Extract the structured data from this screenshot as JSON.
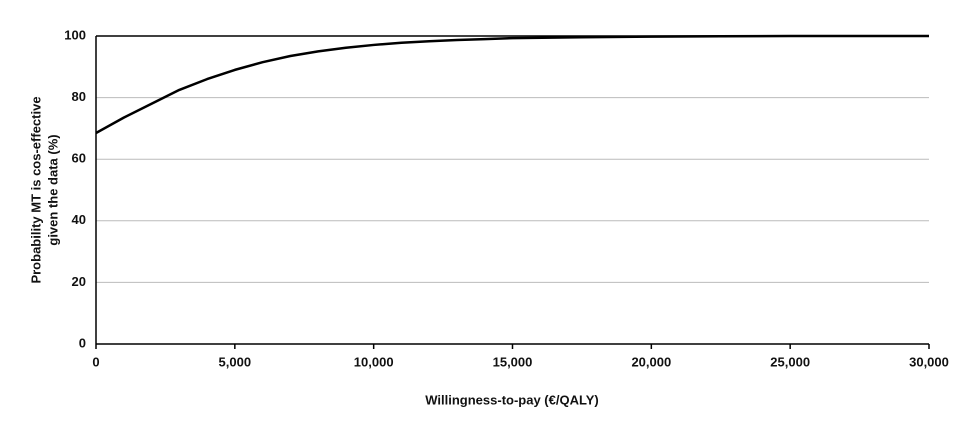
{
  "chart_data": {
    "type": "line",
    "xlabel": "Willingness-to-pay (€/QALY)",
    "ylabel": [
      "Probability MT is cos-effective",
      "given the data (%)"
    ],
    "x": [
      0,
      1000,
      2000,
      3000,
      4000,
      5000,
      6000,
      7000,
      8000,
      9000,
      10000,
      11000,
      12000,
      13000,
      14000,
      15000,
      17500,
      20000,
      22500,
      25000,
      27500,
      30000
    ],
    "series": [
      {
        "color": "#000000",
        "values": [
          68.5,
          73.5,
          78,
          82.5,
          86,
          89,
          91.5,
          93.5,
          95,
          96.2,
          97.1,
          97.8,
          98.3,
          98.7,
          99,
          99.3,
          99.6,
          99.8,
          99.9,
          100,
          100,
          100
        ]
      }
    ],
    "xlim": [
      0,
      30000
    ],
    "xticks": [
      0,
      {
        "value": 5000,
        "label": "5,000"
      },
      {
        "value": 10000,
        "label": "10,000"
      },
      {
        "value": 15000,
        "label": "15,000"
      },
      {
        "value": 20000,
        "label": "20,000"
      },
      {
        "value": 25000,
        "label": "25,000"
      },
      {
        "value": 30000,
        "label": "30,000"
      }
    ],
    "ylim": [
      0,
      100
    ],
    "yticks": [
      0,
      20,
      40,
      60,
      80,
      100
    ],
    "grid": true,
    "grid_color": "#bbbbbb"
  }
}
